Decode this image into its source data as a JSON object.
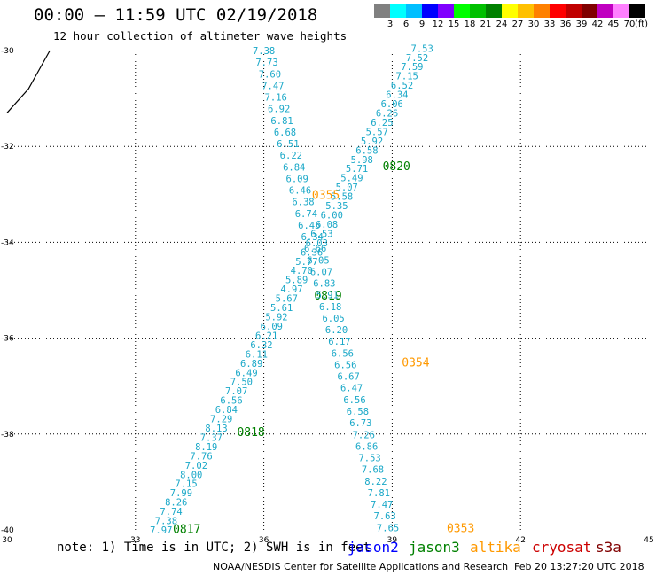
{
  "header": {
    "title": "00:00 – 11:59 UTC 02/19/2018",
    "subtitle": "12 hour collection of altimeter wave heights"
  },
  "legend": {
    "colors": [
      "#808080",
      "#00ffff",
      "#00bfff",
      "#0000ff",
      "#8000ff",
      "#00ff00",
      "#00c000",
      "#008000",
      "#ffff00",
      "#ffc000",
      "#ff8000",
      "#ff0000",
      "#c00000",
      "#800000",
      "#c000c0",
      "#ff80ff",
      "#000000"
    ],
    "labels": [
      "3",
      "6",
      "9",
      "12",
      "15",
      "18",
      "21",
      "24",
      "27",
      "30",
      "33",
      "36",
      "39",
      "42",
      "45",
      "70"
    ],
    "unit": "(ft)"
  },
  "footer": {
    "note": "note: 1) Time is in UTC; 2) SWH is in feet",
    "satellites": [
      {
        "name": "jason2",
        "color": "#0000ff"
      },
      {
        "name": "jason3",
        "color": "#008000"
      },
      {
        "name": "altika",
        "color": "#ff9900"
      },
      {
        "name": "cryosat",
        "color": "#cc0000"
      },
      {
        "name": "s3a",
        "color": "#800000"
      }
    ],
    "credit": "NOAA/NESDIS Center for Satellite Applications and Research",
    "timestamp": "Feb 20 13:27:20 UTC 2018"
  },
  "chart_data": {
    "type": "scatter",
    "xlim": [
      30,
      45
    ],
    "ylim": [
      -40,
      -30
    ],
    "x_ticks": [
      "30",
      "33",
      "36",
      "39",
      "42",
      "45"
    ],
    "y_ticks": [
      "-30",
      "-32",
      "-34",
      "-36",
      "-38",
      "-40"
    ],
    "grid": true,
    "coast_line": [
      [
        30.0,
        -31.3
      ],
      [
        30.5,
        -30.8
      ],
      [
        31.0,
        -30.0
      ]
    ],
    "tracks": [
      {
        "satellite": "jason3",
        "color": "#1aa8c8",
        "start": [
          39.7,
          -29.95
        ],
        "end": [
          33.6,
          -40.0
        ],
        "values": [
          "7.53",
          "7.52",
          "7.59",
          "7.15",
          "6.52",
          "6.34",
          "6.06",
          "6.26",
          "6.25",
          "5.57",
          "5.92",
          "6.58",
          "5.98",
          "5.71",
          "5.49",
          "5.07",
          "5.58",
          "5.35",
          "6.00",
          "6.08",
          "6.53",
          "6.03",
          "6.36",
          "5.77",
          "4.70",
          "5.89",
          "4.97",
          "5.67",
          "5.61",
          "5.92",
          "6.09",
          "6.21",
          "6.32",
          "6.11",
          "6.89",
          "6.49",
          "7.50",
          "7.07",
          "6.56",
          "6.84",
          "7.29",
          "8.13",
          "7.37",
          "8.19",
          "7.76",
          "7.02",
          "8.00",
          "7.15",
          "7.99",
          "8.26",
          "7.74",
          "7.38",
          "7.97"
        ],
        "time_labels": [
          {
            "text": "0820",
            "x": 39.1,
            "y": -32.4,
            "color": "#008000"
          },
          {
            "text": "0819",
            "x": 37.5,
            "y": -35.1,
            "color": "#008000"
          },
          {
            "text": "0818",
            "x": 35.7,
            "y": -37.95,
            "color": "#008000"
          },
          {
            "text": "0817",
            "x": 34.2,
            "y": -39.97,
            "color": "#008000"
          }
        ]
      },
      {
        "satellite": "altika",
        "color": "#1aa8c8",
        "start": [
          36.0,
          -30.0
        ],
        "end": [
          38.9,
          -39.95
        ],
        "values": [
          "7.38",
          "7.73",
          "7.60",
          "7.47",
          "7.16",
          "6.92",
          "6.81",
          "6.68",
          "6.51",
          "6.22",
          "6.84",
          "6.09",
          "6.46",
          "6.38",
          "6.74",
          "6.45",
          "6.34",
          "6.66",
          "6.05",
          "6.07",
          "6.83",
          "5.91",
          "6.18",
          "6.05",
          "6.20",
          "6.17",
          "6.56",
          "6.56",
          "6.67",
          "6.47",
          "6.56",
          "6.58",
          "6.73",
          "7.26",
          "6.86",
          "7.53",
          "7.68",
          "8.22",
          "7.81",
          "7.47",
          "7.63",
          "7.65"
        ],
        "time_labels": [
          {
            "text": "0355",
            "x": 37.45,
            "y": -33.0,
            "color": "#ff9900"
          },
          {
            "text": "0354",
            "x": 39.55,
            "y": -36.5,
            "color": "#ff9900"
          },
          {
            "text": "0353",
            "x": 40.6,
            "y": -39.95,
            "color": "#ff9900"
          }
        ]
      }
    ]
  }
}
